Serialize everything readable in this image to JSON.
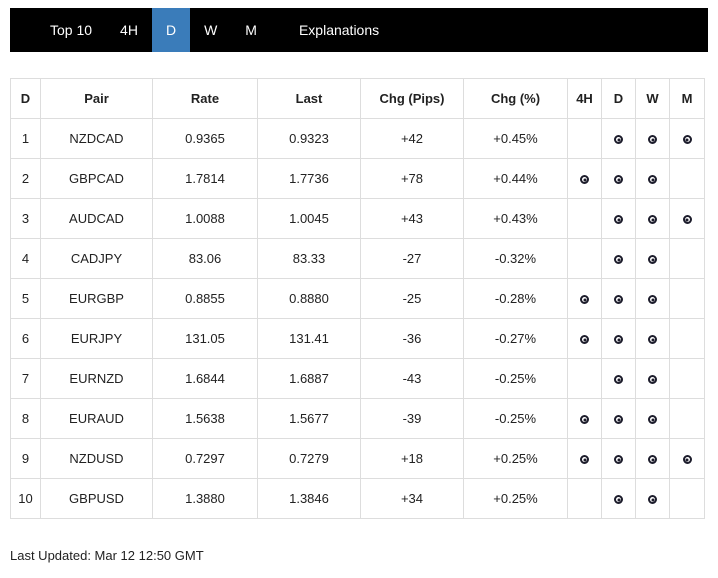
{
  "navbar": {
    "items": [
      {
        "label": "Top 10",
        "active": false
      },
      {
        "label": "4H",
        "active": false
      },
      {
        "label": "D",
        "active": true
      },
      {
        "label": "W",
        "active": false
      },
      {
        "label": "M",
        "active": false
      },
      {
        "label": "Explanations",
        "active": false
      }
    ]
  },
  "colors": {
    "nav_background": "#000000",
    "active_tab": "#3a7cba",
    "table_border": "#dddddd",
    "text": "#222222"
  },
  "table": {
    "headers": {
      "rank": "D",
      "pair": "Pair",
      "rate": "Rate",
      "last": "Last",
      "chg_pips": "Chg (Pips)",
      "chg_pct": "Chg (%)",
      "h4": "4H",
      "d": "D",
      "w": "W",
      "m": "M"
    },
    "signal_icon": "target-icon",
    "rows": [
      {
        "rank": "1",
        "pair": "NZDCAD",
        "rate": "0.9365",
        "last": "0.9323",
        "chg_pips": "+42",
        "chg_pct": "+0.45%",
        "signals": {
          "h4": false,
          "d": true,
          "w": true,
          "m": true
        }
      },
      {
        "rank": "2",
        "pair": "GBPCAD",
        "rate": "1.7814",
        "last": "1.7736",
        "chg_pips": "+78",
        "chg_pct": "+0.44%",
        "signals": {
          "h4": true,
          "d": true,
          "w": true,
          "m": false
        }
      },
      {
        "rank": "3",
        "pair": "AUDCAD",
        "rate": "1.0088",
        "last": "1.0045",
        "chg_pips": "+43",
        "chg_pct": "+0.43%",
        "signals": {
          "h4": false,
          "d": true,
          "w": true,
          "m": true
        }
      },
      {
        "rank": "4",
        "pair": "CADJPY",
        "rate": "83.06",
        "last": "83.33",
        "chg_pips": "-27",
        "chg_pct": "-0.32%",
        "signals": {
          "h4": false,
          "d": true,
          "w": true,
          "m": false
        }
      },
      {
        "rank": "5",
        "pair": "EURGBP",
        "rate": "0.8855",
        "last": "0.8880",
        "chg_pips": "-25",
        "chg_pct": "-0.28%",
        "signals": {
          "h4": true,
          "d": true,
          "w": true,
          "m": false
        }
      },
      {
        "rank": "6",
        "pair": "EURJPY",
        "rate": "131.05",
        "last": "131.41",
        "chg_pips": "-36",
        "chg_pct": "-0.27%",
        "signals": {
          "h4": true,
          "d": true,
          "w": true,
          "m": false
        }
      },
      {
        "rank": "7",
        "pair": "EURNZD",
        "rate": "1.6844",
        "last": "1.6887",
        "chg_pips": "-43",
        "chg_pct": "-0.25%",
        "signals": {
          "h4": false,
          "d": true,
          "w": true,
          "m": false
        }
      },
      {
        "rank": "8",
        "pair": "EURAUD",
        "rate": "1.5638",
        "last": "1.5677",
        "chg_pips": "-39",
        "chg_pct": "-0.25%",
        "signals": {
          "h4": true,
          "d": true,
          "w": true,
          "m": false
        }
      },
      {
        "rank": "9",
        "pair": "NZDUSD",
        "rate": "0.7297",
        "last": "0.7279",
        "chg_pips": "+18",
        "chg_pct": "+0.25%",
        "signals": {
          "h4": true,
          "d": true,
          "w": true,
          "m": true
        }
      },
      {
        "rank": "10",
        "pair": "GBPUSD",
        "rate": "1.3880",
        "last": "1.3846",
        "chg_pips": "+34",
        "chg_pct": "+0.25%",
        "signals": {
          "h4": false,
          "d": true,
          "w": true,
          "m": false
        }
      }
    ]
  },
  "footer": {
    "last_updated": "Last Updated: Mar 12 12:50 GMT"
  }
}
